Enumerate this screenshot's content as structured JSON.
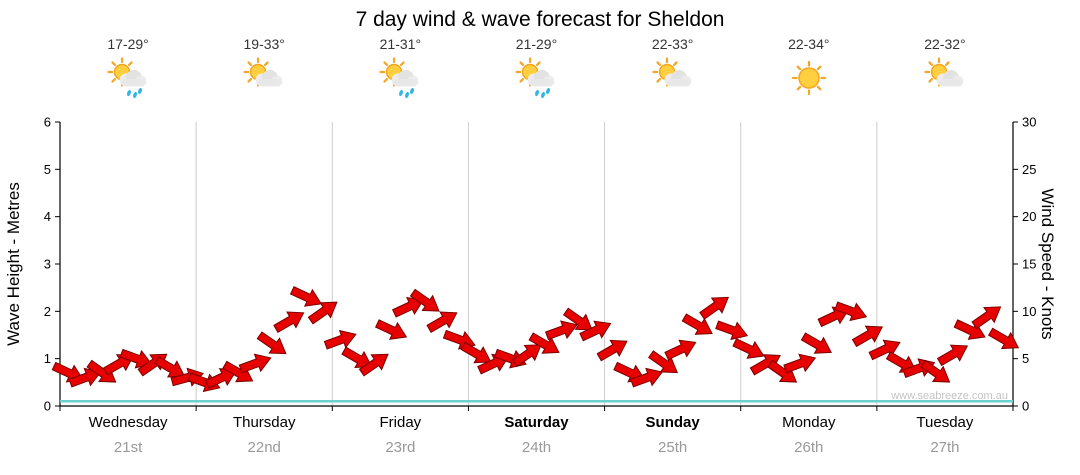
{
  "chart_data": {
    "type": "line",
    "title": "7 day wind & wave forecast for Sheldon",
    "watermark": "www.seabreeze.com.au",
    "left_axis": {
      "label": "Wave Height - Metres",
      "min": 0,
      "max": 6,
      "ticks": [
        0,
        1,
        2,
        3,
        4,
        5,
        6
      ]
    },
    "right_axis": {
      "label": "Wind Speed - Knots",
      "min": 0,
      "max": 30,
      "ticks": [
        0,
        5,
        10,
        15,
        20,
        25,
        30
      ]
    },
    "days": [
      {
        "name": "Wednesday",
        "date": "21st",
        "temp": "17-29°",
        "icon": "sun-cloud-rain",
        "bold": false
      },
      {
        "name": "Thursday",
        "date": "22nd",
        "temp": "19-33°",
        "icon": "sun-cloud",
        "bold": false
      },
      {
        "name": "Friday",
        "date": "23rd",
        "temp": "21-31°",
        "icon": "sun-cloud-rain",
        "bold": false
      },
      {
        "name": "Saturday",
        "date": "24th",
        "temp": "21-29°",
        "icon": "sun-cloud-rain",
        "bold": true
      },
      {
        "name": "Sunday",
        "date": "25th",
        "temp": "22-33°",
        "icon": "sun-cloud",
        "bold": true
      },
      {
        "name": "Monday",
        "date": "26th",
        "temp": "22-34°",
        "icon": "sun",
        "bold": false
      },
      {
        "name": "Tuesday",
        "date": "27th",
        "temp": "22-32°",
        "icon": "sun-cloud",
        "bold": false
      }
    ],
    "series": [
      {
        "name": "Wind Speed",
        "unit": "knots",
        "axis": "right",
        "style": "arrows"
      },
      {
        "name": "Wave Height",
        "unit": "m",
        "axis": "left",
        "style": "line"
      }
    ],
    "wind_knots": [
      3.5,
      3,
      3.5,
      4.5,
      5,
      4.5,
      4,
      3,
      2.5,
      3,
      3.5,
      4.5,
      6.5,
      9,
      11.5,
      10,
      7,
      5,
      4.5,
      8,
      10.5,
      11,
      9,
      7,
      5.5,
      4.5,
      5,
      5.5,
      6.5,
      8,
      9,
      8,
      6,
      3.5,
      3,
      4.5,
      6,
      8.5,
      10.5,
      8,
      6,
      4.5,
      3.5,
      4.5,
      6.5,
      9.5,
      10,
      7.5,
      6,
      4.5,
      4,
      3.5,
      5.5,
      8,
      9.5,
      7
    ],
    "wind_dir_deg": [
      25,
      -20,
      35,
      -30,
      20,
      -35,
      30,
      -15,
      20,
      -25,
      30,
      -20,
      35,
      -30,
      25,
      -35,
      -20,
      30,
      -35,
      25,
      -25,
      35,
      -30,
      20,
      30,
      -25,
      20,
      -35,
      30,
      -20,
      35,
      -25,
      -30,
      25,
      -20,
      35,
      -25,
      30,
      -35,
      20,
      25,
      -30,
      35,
      -20,
      30,
      -25,
      20,
      -30,
      -25,
      30,
      -20,
      35,
      -30,
      25,
      -35,
      30
    ],
    "wave_metres": [
      0.1,
      0.1,
      0.1,
      0.1,
      0.1,
      0.1,
      0.1,
      0.1
    ],
    "colors": {
      "wind": "#e60000",
      "wind_outline": "#7a0000",
      "wave": "#6ecfcf",
      "grid": "#cccccc",
      "axis": "#000000",
      "date": "#999999",
      "watermark": "#c4c4c4"
    }
  }
}
